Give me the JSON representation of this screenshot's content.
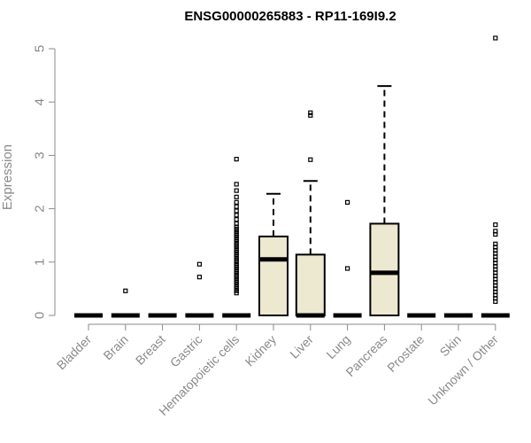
{
  "chart_data": {
    "type": "boxplot",
    "title": "ENSG00000265883 - RP11-169I9.2",
    "xlabel": "",
    "ylabel": "Expression",
    "ylim": [
      0,
      5.2
    ],
    "yticks": [
      0,
      1,
      2,
      3,
      4,
      5
    ],
    "grid": false,
    "colors": {
      "box_fill": "#ede8d0",
      "line": "#000000",
      "axis": "#8a8a8a"
    },
    "categories": [
      "Bladder",
      "Brain",
      "Breast",
      "Gastric",
      "Hematopoietic cells",
      "Kidney",
      "Liver",
      "Lung",
      "Pancreas",
      "Prostate",
      "Skin",
      "Unknown / Other"
    ],
    "boxes": [
      {
        "name": "Bladder",
        "q1": 0,
        "median": 0,
        "q3": 0,
        "whisker_low": 0,
        "whisker_high": 0,
        "outliers": []
      },
      {
        "name": "Brain",
        "q1": 0,
        "median": 0,
        "q3": 0,
        "whisker_low": 0,
        "whisker_high": 0,
        "outliers": [
          0.46
        ]
      },
      {
        "name": "Breast",
        "q1": 0,
        "median": 0,
        "q3": 0,
        "whisker_low": 0,
        "whisker_high": 0,
        "outliers": []
      },
      {
        "name": "Gastric",
        "q1": 0,
        "median": 0,
        "q3": 0,
        "whisker_low": 0,
        "whisker_high": 0,
        "outliers": [
          0.72,
          0.96
        ]
      },
      {
        "name": "Hematopoietic cells",
        "q1": 0,
        "median": 0,
        "q3": 0,
        "whisker_low": 0,
        "whisker_high": 0,
        "outliers": [
          0.42,
          0.46,
          0.5,
          0.54,
          0.58,
          0.62,
          0.66,
          0.7,
          0.74,
          0.78,
          0.82,
          0.86,
          0.9,
          0.94,
          0.98,
          1.02,
          1.06,
          1.1,
          1.14,
          1.18,
          1.22,
          1.26,
          1.3,
          1.34,
          1.38,
          1.42,
          1.46,
          1.5,
          1.54,
          1.58,
          1.62,
          1.66,
          1.72,
          1.8,
          1.88,
          1.96,
          2.04,
          2.12,
          2.22,
          2.34,
          2.46,
          2.93
        ]
      },
      {
        "name": "Kidney",
        "q1": 0,
        "median": 1.05,
        "q3": 1.48,
        "whisker_low": 0,
        "whisker_high": 2.28,
        "outliers": []
      },
      {
        "name": "Liver",
        "q1": 0,
        "median": 0,
        "q3": 1.14,
        "whisker_low": 0,
        "whisker_high": 2.52,
        "outliers": [
          2.92,
          3.75,
          3.8
        ]
      },
      {
        "name": "Lung",
        "q1": 0,
        "median": 0,
        "q3": 0,
        "whisker_low": 0,
        "whisker_high": 0,
        "outliers": [
          0.88,
          2.12
        ]
      },
      {
        "name": "Pancreas",
        "q1": 0,
        "median": 0.8,
        "q3": 1.72,
        "whisker_low": 0,
        "whisker_high": 4.3,
        "outliers": []
      },
      {
        "name": "Prostate",
        "q1": 0,
        "median": 0,
        "q3": 0,
        "whisker_low": 0,
        "whisker_high": 0,
        "outliers": []
      },
      {
        "name": "Skin",
        "q1": 0,
        "median": 0,
        "q3": 0,
        "whisker_low": 0,
        "whisker_high": 0,
        "outliers": []
      },
      {
        "name": "Unknown / Other",
        "q1": 0,
        "median": 0,
        "q3": 0,
        "whisker_low": 0,
        "whisker_high": 0,
        "outliers": [
          0.26,
          0.32,
          0.38,
          0.44,
          0.5,
          0.56,
          0.62,
          0.68,
          0.74,
          0.8,
          0.86,
          0.92,
          0.98,
          1.04,
          1.1,
          1.16,
          1.22,
          1.28,
          1.34,
          1.52,
          1.58,
          1.7,
          5.2
        ]
      }
    ]
  }
}
